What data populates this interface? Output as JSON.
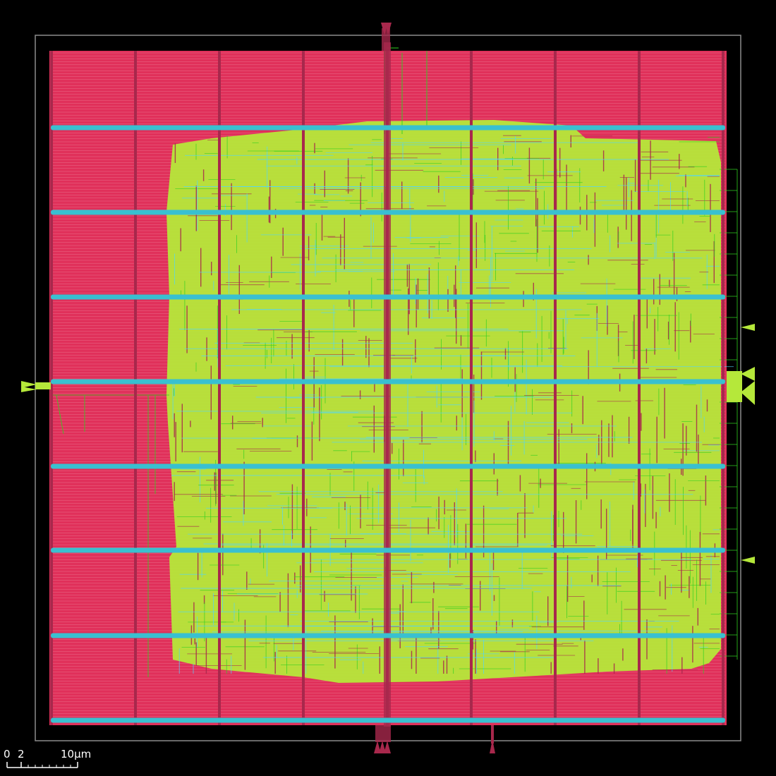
{
  "viewer": {
    "background": "#000000",
    "die_outline_color": "#8c8c8c",
    "colors": {
      "power_rail": "#e0305a",
      "rail_line": "#f0a0b0",
      "metal_vertical": "#a8284c",
      "strap_horizontal": "#39c0d0",
      "std_cells": "#b5e83a",
      "routing_green": "#30d020",
      "routing_cyan": "#4fd6ff",
      "pin": "#a8284c",
      "pin_side": "#b5e83a"
    }
  },
  "scale_bar": {
    "label_zero": "0",
    "label_two": "2",
    "label_ten": "10µm"
  }
}
